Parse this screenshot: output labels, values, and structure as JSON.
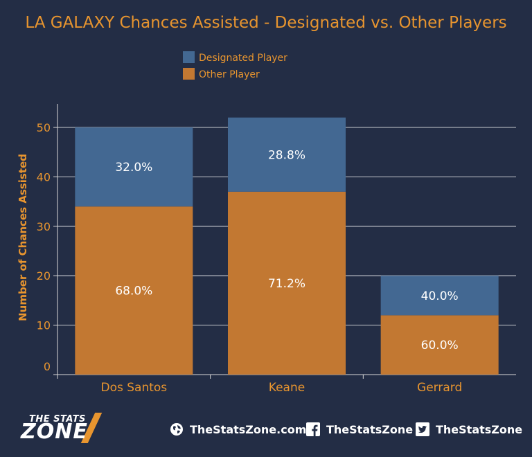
{
  "chart_data": {
    "type": "bar",
    "stacked": true,
    "title": "LA GALAXY Chances Assisted - Designated vs. Other Players",
    "ylabel": "Number of Chances Assisted",
    "xlabel": "",
    "ylim": [
      0,
      55
    ],
    "yticks": [
      0,
      10,
      20,
      30,
      40,
      50
    ],
    "grid": true,
    "legend_position": "top-center",
    "categories": [
      "Dos Santos",
      "Keane",
      "Gerrard"
    ],
    "series": [
      {
        "name": "Other Player",
        "color": "#c27832",
        "values": [
          34,
          37,
          12
        ],
        "labels": [
          "68.0%",
          "71.2%",
          "60.0%"
        ]
      },
      {
        "name": "Designated Player",
        "color": "#436892",
        "values": [
          16,
          15,
          8
        ],
        "labels": [
          "32.0%",
          "28.8%",
          "40.0%"
        ]
      }
    ],
    "legend_order": [
      "Designated Player",
      "Other Player"
    ]
  },
  "footer": {
    "logo_top": "THE STATS",
    "logo_bottom": "ZONE",
    "website": "TheStatsZone.com",
    "facebook": "TheStatsZone",
    "twitter": "TheStatsZone",
    "icons": [
      "globe-icon",
      "facebook-icon",
      "twitter-icon"
    ]
  },
  "colors": {
    "background": "#232d45",
    "accent": "#e8952f",
    "axis": "#d8d8d8"
  }
}
